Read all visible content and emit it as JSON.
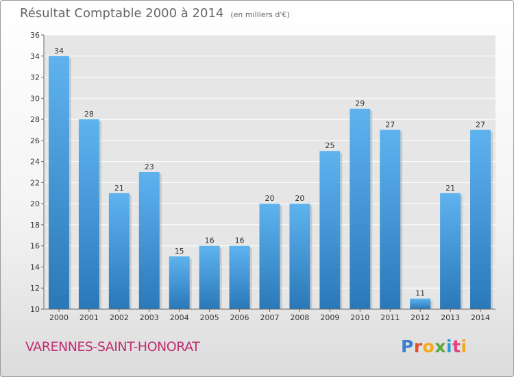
{
  "chart_data": {
    "type": "bar",
    "title": "Résultat Comptable 2000 à 2014",
    "subtitle": "(en milliers d'€)",
    "categories": [
      "2000",
      "2001",
      "2002",
      "2003",
      "2004",
      "2005",
      "2006",
      "2007",
      "2008",
      "2009",
      "2010",
      "2011",
      "2012",
      "2013",
      "2014"
    ],
    "values": [
      34,
      28,
      21,
      23,
      15,
      16,
      16,
      20,
      20,
      25,
      29,
      27,
      11,
      21,
      27
    ],
    "ylim": [
      10,
      36
    ],
    "yticks": [
      10,
      12,
      14,
      16,
      18,
      20,
      22,
      24,
      26,
      28,
      30,
      32,
      34,
      36
    ],
    "xlabel": "",
    "ylabel": "",
    "grid": true,
    "bar_color": "#3a8fd6"
  },
  "footer": {
    "commune": "VARENNES-SAINT-HONORAT",
    "logo": "Proxiti"
  },
  "colors": {
    "commune": "#c03071",
    "logo_letters": [
      "#3a7fd0",
      "#e0502a",
      "#f2a81d",
      "#5aa83a",
      "#2f9ad6",
      "#e3437a",
      "#f2a81d"
    ]
  }
}
